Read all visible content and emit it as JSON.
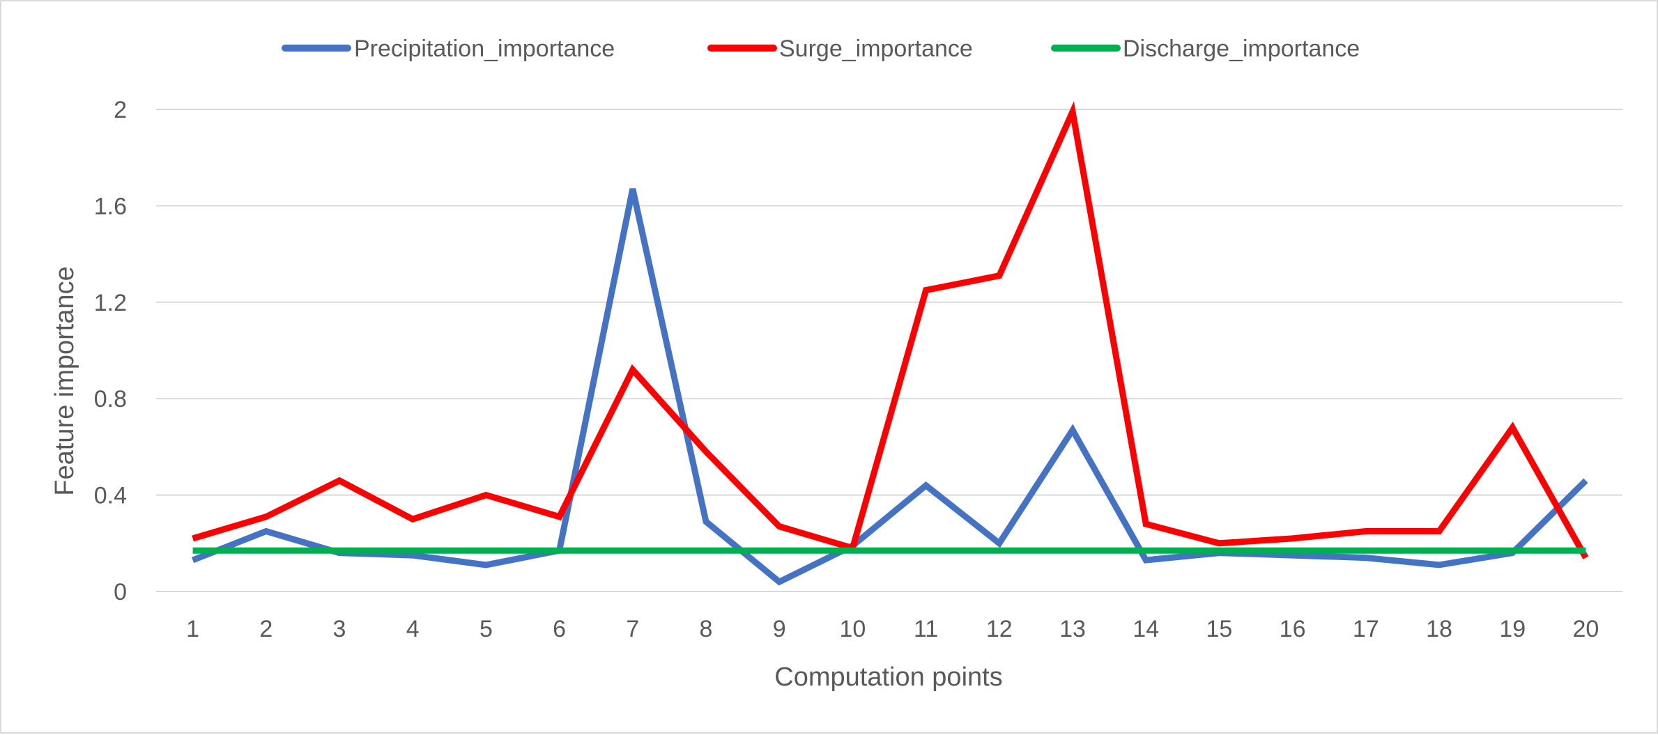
{
  "chart_data": {
    "type": "line",
    "title": "",
    "xlabel": "Computation points",
    "ylabel": "Feature importance",
    "categories": [
      "1",
      "2",
      "3",
      "4",
      "5",
      "6",
      "7",
      "8",
      "9",
      "10",
      "11",
      "12",
      "13",
      "14",
      "15",
      "16",
      "17",
      "18",
      "19",
      "20"
    ],
    "ylim": [
      0,
      2
    ],
    "yticks": [
      "0",
      "0.4",
      "0.8",
      "1.2",
      "1.6",
      "2"
    ],
    "ytick_values": [
      0,
      0.4,
      0.8,
      1.2,
      1.6,
      2
    ],
    "grid": true,
    "legend_position": "top",
    "series": [
      {
        "name": "Precipitation_importance",
        "color": "#4472C4",
        "values": [
          0.13,
          0.25,
          0.16,
          0.15,
          0.11,
          0.17,
          1.67,
          0.29,
          0.04,
          0.19,
          0.44,
          0.2,
          0.67,
          0.13,
          0.16,
          0.15,
          0.14,
          0.11,
          0.16,
          0.46
        ]
      },
      {
        "name": "Surge_importance",
        "color": "#FF0000",
        "values": [
          0.22,
          0.31,
          0.46,
          0.3,
          0.4,
          0.31,
          0.92,
          0.58,
          0.27,
          0.18,
          1.25,
          1.31,
          1.99,
          0.28,
          0.2,
          0.22,
          0.25,
          0.25,
          0.68,
          0.14
        ]
      },
      {
        "name": "Discharge_importance",
        "color": "#00B050",
        "values": [
          0.17,
          0.17,
          0.17,
          0.17,
          0.17,
          0.17,
          0.17,
          0.17,
          0.17,
          0.17,
          0.17,
          0.17,
          0.17,
          0.17,
          0.17,
          0.17,
          0.17,
          0.17,
          0.17,
          0.17
        ]
      }
    ]
  }
}
